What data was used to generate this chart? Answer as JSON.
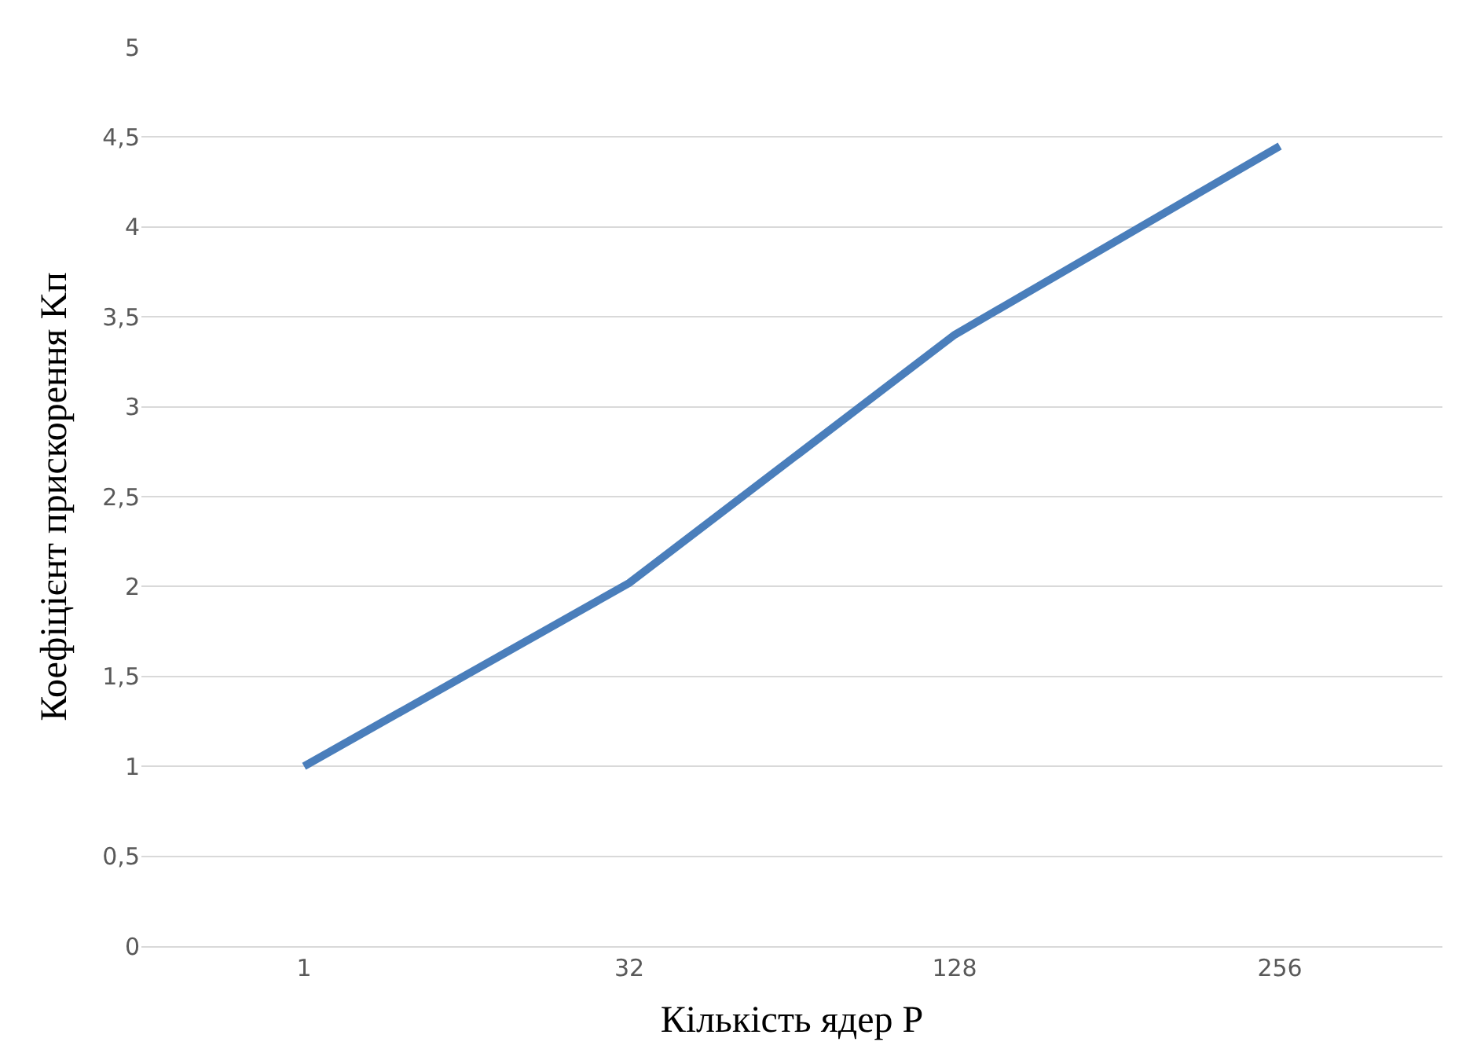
{
  "chart_data": {
    "type": "line",
    "xlabel": "Кількість ядер P",
    "ylabel": "Коефіцієнт прискорення Kп",
    "categories": [
      "1",
      "32",
      "128",
      "256"
    ],
    "series": [
      {
        "color": "#4a7ebb",
        "values": [
          1,
          2.02,
          3.4,
          4.45
        ]
      }
    ],
    "ylim": [
      0,
      5
    ],
    "yticks": [
      0,
      {
        "value": 0.5,
        "label": "0,5"
      },
      1,
      {
        "value": 1.5,
        "label": "1,5"
      },
      2,
      {
        "value": 2.5,
        "label": "2,5"
      },
      3,
      {
        "value": 3.5,
        "label": "3,5"
      },
      4,
      {
        "value": 4.5,
        "label": "4,5"
      },
      5
    ],
    "grid": "y",
    "legend": false,
    "marker": "none",
    "line_style": "solid"
  }
}
